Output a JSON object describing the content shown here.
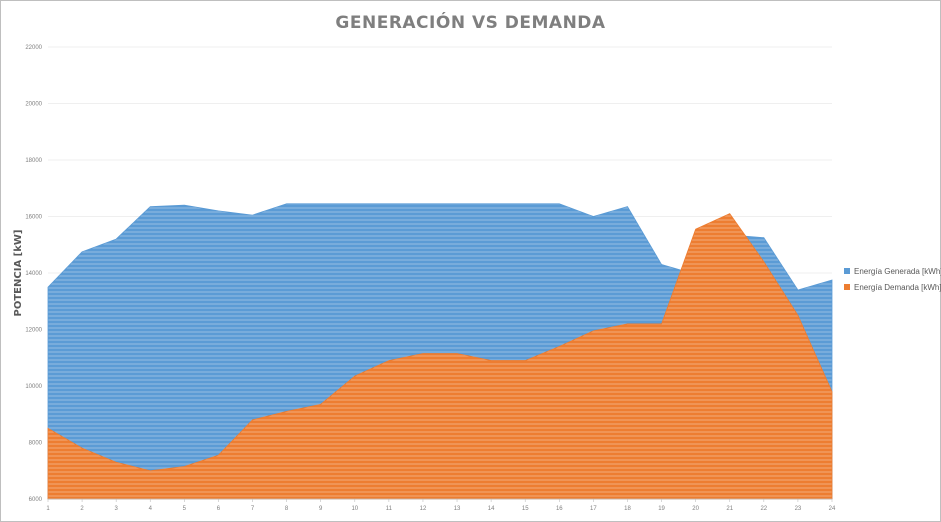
{
  "chart_data": {
    "type": "area",
    "title": "GENERACIÓN VS DEMANDA",
    "xlabel": "",
    "ylabel": "POTENCIA [kW]",
    "x": [
      1,
      2,
      3,
      4,
      5,
      6,
      7,
      8,
      9,
      10,
      11,
      12,
      13,
      14,
      15,
      16,
      17,
      18,
      19,
      20,
      21,
      22,
      23,
      24
    ],
    "ylim": [
      6000,
      22000
    ],
    "yticks": [
      6000,
      8000,
      10000,
      12000,
      14000,
      16000,
      18000,
      20000,
      22000
    ],
    "grid": true,
    "legend": "right",
    "series": [
      {
        "name": "Energía Generada  [kWh]",
        "color": "#5b9bd5",
        "values": [
          13500,
          14750,
          15200,
          16350,
          16400,
          16200,
          16050,
          16450,
          16450,
          16450,
          16450,
          16450,
          16450,
          16450,
          16450,
          16450,
          16000,
          16350,
          14300,
          13950,
          15350,
          15250,
          13400,
          13750
        ]
      },
      {
        "name": "Energía Demanda [kWh]",
        "color": "#ed7d31",
        "values": [
          8500,
          7800,
          7300,
          7000,
          7150,
          7550,
          8800,
          9100,
          9350,
          10350,
          10900,
          11150,
          11150,
          10900,
          10900,
          11400,
          11950,
          12200,
          12200,
          15550,
          16100,
          14400,
          12500,
          9800
        ]
      }
    ]
  }
}
